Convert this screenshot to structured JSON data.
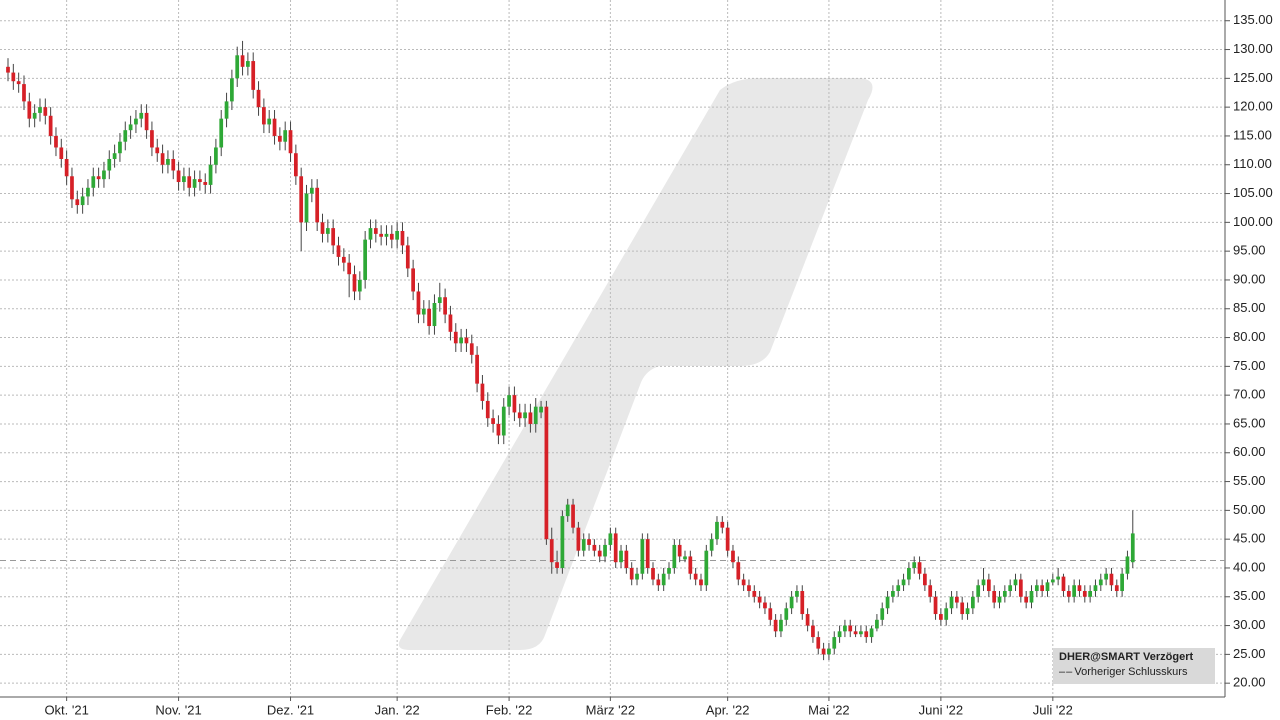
{
  "chart_data": {
    "type": "candlestick",
    "symbol": "DHER@SMART Verzögert",
    "legend_label": "Vorheriger Schlusskurs",
    "previous_close": 41.3,
    "up_color": "#2ea836",
    "down_color": "#d62027",
    "grid": true,
    "xlim": [
      -1.5,
      228.3
    ],
    "xticks": [
      {
        "value": 11,
        "label": "Okt. '21"
      },
      {
        "value": 32,
        "label": "Nov. '21"
      },
      {
        "value": 53,
        "label": "Dez. '21"
      },
      {
        "value": 73,
        "label": "Jan. '22"
      },
      {
        "value": 94,
        "label": "Feb. '22"
      },
      {
        "value": 113,
        "label": "März '22"
      },
      {
        "value": 135,
        "label": "Apr. '22"
      },
      {
        "value": 154,
        "label": "Mai '22"
      },
      {
        "value": 175,
        "label": "Juni '22"
      },
      {
        "value": 196,
        "label": "Juli '22"
      }
    ],
    "ylim": [
      17.6,
      138.6
    ],
    "yticks": [
      {
        "value": 20,
        "label": "20.00"
      },
      {
        "value": 25,
        "label": "25.00"
      },
      {
        "value": 30,
        "label": "30.00"
      },
      {
        "value": 35,
        "label": "35.00"
      },
      {
        "value": 40,
        "label": "40.00"
      },
      {
        "value": 45,
        "label": "45.00"
      },
      {
        "value": 50,
        "label": "50.00"
      },
      {
        "value": 55,
        "label": "55.00"
      },
      {
        "value": 60,
        "label": "60.00"
      },
      {
        "value": 65,
        "label": "65.00"
      },
      {
        "value": 70,
        "label": "70.00"
      },
      {
        "value": 75,
        "label": "75.00"
      },
      {
        "value": 80,
        "label": "80.00"
      },
      {
        "value": 85,
        "label": "85.00"
      },
      {
        "value": 90,
        "label": "90.00"
      },
      {
        "value": 95,
        "label": "95.00"
      },
      {
        "value": 100,
        "label": "100.00"
      },
      {
        "value": 105,
        "label": "105.00"
      },
      {
        "value": 110,
        "label": "110.00"
      },
      {
        "value": 115,
        "label": "115.00"
      },
      {
        "value": 120,
        "label": "120.00"
      },
      {
        "value": 125,
        "label": "125.00"
      },
      {
        "value": 130,
        "label": "130.00"
      },
      {
        "value": 135,
        "label": "135.00"
      }
    ],
    "ohlc": [
      [
        127,
        128.5,
        124.5,
        126
      ],
      [
        126,
        127.5,
        123,
        124.5
      ],
      [
        124.5,
        126,
        122.5,
        124
      ],
      [
        124,
        125.5,
        119.5,
        121
      ],
      [
        121,
        122.5,
        116.5,
        118
      ],
      [
        118,
        120.5,
        116.5,
        119
      ],
      [
        119,
        121.5,
        117.5,
        120
      ],
      [
        120,
        121.5,
        117,
        118.5
      ],
      [
        118.5,
        120,
        113.5,
        115
      ],
      [
        115,
        116.5,
        111.5,
        113
      ],
      [
        113,
        114.5,
        109.5,
        111
      ],
      [
        111,
        112.5,
        106.5,
        108
      ],
      [
        108,
        109.5,
        102.5,
        104
      ],
      [
        104,
        105.5,
        101.5,
        103
      ],
      [
        103,
        106,
        101.5,
        104.5
      ],
      [
        104.5,
        107.5,
        103,
        106
      ],
      [
        106,
        109.5,
        104.5,
        108
      ],
      [
        108,
        109.5,
        106,
        107.5
      ],
      [
        107.5,
        110.5,
        106,
        109
      ],
      [
        109,
        112.5,
        107.5,
        111
      ],
      [
        111,
        113.5,
        109.5,
        112
      ],
      [
        112,
        115.5,
        110.5,
        114
      ],
      [
        114,
        117.5,
        112.5,
        116
      ],
      [
        116,
        118.5,
        114.5,
        117
      ],
      [
        117,
        119.5,
        115.5,
        118
      ],
      [
        118,
        120.5,
        116.5,
        119
      ],
      [
        119,
        120.5,
        114.5,
        116
      ],
      [
        116,
        117.5,
        111.5,
        113
      ],
      [
        113,
        114.5,
        110.5,
        112
      ],
      [
        112,
        113.5,
        108.5,
        110
      ],
      [
        110,
        112.5,
        108.5,
        111
      ],
      [
        111,
        112.5,
        107.5,
        109
      ],
      [
        109,
        110.5,
        105.5,
        107
      ],
      [
        107,
        109.5,
        105.5,
        108
      ],
      [
        108,
        109.5,
        104.5,
        106
      ],
      [
        106,
        109,
        104.5,
        107.5
      ],
      [
        107.5,
        109,
        105.5,
        107
      ],
      [
        107,
        108.5,
        105,
        106.5
      ],
      [
        106.5,
        111.5,
        105,
        110
      ],
      [
        110,
        114.5,
        108.5,
        113
      ],
      [
        113,
        119.5,
        111.5,
        118
      ],
      [
        118,
        122.5,
        116.5,
        121
      ],
      [
        121,
        126.5,
        119.5,
        125
      ],
      [
        125,
        130.5,
        123.5,
        129
      ],
      [
        129,
        131.5,
        125.5,
        127
      ],
      [
        127,
        129.5,
        125.5,
        128
      ],
      [
        128,
        129.5,
        121.5,
        123
      ],
      [
        123,
        124.5,
        118.5,
        120
      ],
      [
        120,
        121.5,
        115.5,
        117
      ],
      [
        117,
        119.5,
        115.5,
        118
      ],
      [
        118,
        119.5,
        113.5,
        115
      ],
      [
        115,
        116.5,
        112.5,
        114
      ],
      [
        114,
        117.5,
        112.5,
        116
      ],
      [
        116,
        117.5,
        110.5,
        112
      ],
      [
        112,
        113.5,
        106.5,
        108
      ],
      [
        108,
        109.5,
        95,
        100
      ],
      [
        100,
        106.5,
        98.5,
        105
      ],
      [
        105,
        107.5,
        103.5,
        106
      ],
      [
        106,
        107.5,
        98.5,
        100
      ],
      [
        100,
        101.5,
        96.5,
        98
      ],
      [
        98,
        100.5,
        96.5,
        99
      ],
      [
        99,
        100.5,
        94.5,
        96
      ],
      [
        96,
        97.5,
        92.5,
        94
      ],
      [
        94,
        95.5,
        91.5,
        93
      ],
      [
        93,
        94.5,
        87,
        91
      ],
      [
        91,
        92.5,
        86.5,
        88
      ],
      [
        88,
        91.5,
        86.5,
        90
      ],
      [
        90,
        98.5,
        88.5,
        97
      ],
      [
        97,
        100.5,
        95.5,
        99
      ],
      [
        99,
        100.5,
        96.5,
        98
      ],
      [
        98,
        99.5,
        96,
        97.5
      ],
      [
        97.5,
        99.5,
        96,
        98
      ],
      [
        98,
        99.5,
        95.5,
        97
      ],
      [
        97,
        100,
        95.5,
        98.5
      ],
      [
        98.5,
        100,
        94.5,
        96
      ],
      [
        96,
        97.5,
        90.5,
        92
      ],
      [
        92,
        93.5,
        86.5,
        88
      ],
      [
        88,
        89.5,
        82.5,
        84
      ],
      [
        84,
        86.5,
        82.5,
        85
      ],
      [
        85,
        86.5,
        80.5,
        82
      ],
      [
        82,
        87.5,
        80.5,
        86
      ],
      [
        86,
        89.5,
        84.5,
        87
      ],
      [
        87,
        88.5,
        82.5,
        84
      ],
      [
        84,
        85.5,
        79.5,
        81
      ],
      [
        81,
        82.5,
        77.5,
        79
      ],
      [
        79,
        81.5,
        77.5,
        80
      ],
      [
        80,
        81.5,
        77.5,
        79
      ],
      [
        79,
        80.5,
        75.5,
        77
      ],
      [
        77,
        78.5,
        70.5,
        72
      ],
      [
        72,
        73.5,
        67.5,
        69
      ],
      [
        69,
        70.5,
        64.5,
        66
      ],
      [
        66,
        67.5,
        63.5,
        65
      ],
      [
        65,
        66.5,
        61.5,
        63
      ],
      [
        63,
        69.5,
        61.5,
        68
      ],
      [
        68,
        71.5,
        66.5,
        70
      ],
      [
        70,
        71.5,
        65.5,
        67
      ],
      [
        67,
        68.5,
        64.5,
        66
      ],
      [
        66,
        68.5,
        64.5,
        67
      ],
      [
        67,
        68.5,
        63.5,
        65
      ],
      [
        65,
        69.5,
        63.5,
        68
      ],
      [
        67,
        69,
        66,
        68
      ],
      [
        68,
        69,
        44,
        45
      ],
      [
        45,
        47,
        39,
        41
      ],
      [
        41,
        43,
        39,
        40
      ],
      [
        40,
        50,
        39,
        49
      ],
      [
        49,
        52,
        48,
        51
      ],
      [
        51,
        52,
        46,
        47
      ],
      [
        47,
        48,
        42,
        43
      ],
      [
        43,
        46,
        42,
        45
      ],
      [
        45,
        46,
        43,
        44
      ],
      [
        44,
        45,
        42,
        43
      ],
      [
        43,
        44,
        41,
        42
      ],
      [
        42,
        45,
        41,
        44
      ],
      [
        44,
        47,
        43,
        46
      ],
      [
        46,
        47,
        40,
        41
      ],
      [
        41,
        44,
        40,
        43
      ],
      [
        43,
        44,
        39,
        40
      ],
      [
        40,
        41,
        37,
        38
      ],
      [
        38,
        40,
        37,
        39
      ],
      [
        39,
        46,
        38,
        45
      ],
      [
        45,
        46,
        39,
        40
      ],
      [
        40,
        41,
        37,
        38
      ],
      [
        38,
        39,
        36,
        37
      ],
      [
        37,
        40,
        36,
        39
      ],
      [
        39,
        41,
        38,
        40
      ],
      [
        40,
        45,
        39,
        44
      ],
      [
        44,
        45,
        41,
        42
      ],
      [
        41.5,
        43,
        41,
        42
      ],
      [
        42,
        43,
        38,
        39
      ],
      [
        39,
        40,
        37,
        38
      ],
      [
        38,
        39,
        36,
        37
      ],
      [
        37,
        44,
        36,
        43
      ],
      [
        43,
        46,
        42,
        45
      ],
      [
        45,
        49,
        44,
        48
      ],
      [
        48,
        49,
        46,
        47
      ],
      [
        47,
        48,
        42,
        43
      ],
      [
        43,
        44,
        40,
        41
      ],
      [
        41,
        42,
        37,
        38
      ],
      [
        38,
        39,
        36,
        37
      ],
      [
        37,
        38,
        35,
        36
      ],
      [
        36,
        37,
        34,
        35
      ],
      [
        35,
        36,
        33,
        34
      ],
      [
        34,
        35,
        32,
        33
      ],
      [
        33,
        34,
        30,
        31
      ],
      [
        31,
        32,
        28,
        29
      ],
      [
        29,
        32,
        28,
        31
      ],
      [
        31,
        34,
        30,
        33
      ],
      [
        33,
        36,
        32,
        35
      ],
      [
        35,
        37,
        34,
        36
      ],
      [
        36,
        37,
        31,
        32
      ],
      [
        32,
        33,
        29,
        30
      ],
      [
        30,
        31,
        27,
        28
      ],
      [
        28,
        29,
        25,
        26
      ],
      [
        26,
        27,
        24,
        25
      ],
      [
        25,
        27,
        24,
        26
      ],
      [
        26,
        29,
        25,
        28
      ],
      [
        28,
        30,
        27,
        29
      ],
      [
        29,
        31,
        28,
        30
      ],
      [
        30,
        31,
        28,
        29
      ],
      [
        29,
        30,
        28,
        28.5
      ],
      [
        28.5,
        30,
        28,
        29
      ],
      [
        29,
        30,
        27,
        28
      ],
      [
        28,
        30,
        27,
        29.5
      ],
      [
        29.5,
        32,
        29,
        31
      ],
      [
        31,
        34,
        30,
        33
      ],
      [
        33,
        36,
        32,
        35
      ],
      [
        35,
        37,
        34,
        36
      ],
      [
        36,
        38,
        35,
        37
      ],
      [
        37,
        39,
        36,
        38
      ],
      [
        38,
        41,
        37,
        40
      ],
      [
        40,
        42,
        39,
        41
      ],
      [
        41,
        42,
        38,
        39
      ],
      [
        39,
        40,
        36,
        37
      ],
      [
        37,
        38,
        34,
        35
      ],
      [
        35,
        36,
        31,
        32
      ],
      [
        32,
        33,
        30,
        31
      ],
      [
        31,
        34,
        30,
        33
      ],
      [
        33,
        36,
        32,
        35
      ],
      [
        35,
        36,
        33,
        34
      ],
      [
        34,
        35,
        31,
        32
      ],
      [
        32,
        34,
        31,
        33
      ],
      [
        33,
        36,
        32,
        35
      ],
      [
        35,
        38,
        34,
        37
      ],
      [
        37,
        40,
        36,
        38
      ],
      [
        38,
        39,
        35,
        36
      ],
      [
        36,
        37,
        33,
        34
      ],
      [
        34,
        36,
        33,
        35
      ],
      [
        35,
        37,
        34,
        36
      ],
      [
        36,
        38,
        35,
        37
      ],
      [
        37,
        39,
        36,
        38
      ],
      [
        38,
        39,
        34,
        35
      ],
      [
        35,
        36,
        33,
        34
      ],
      [
        34,
        37,
        33,
        36
      ],
      [
        36,
        38,
        35,
        37
      ],
      [
        37,
        38,
        35,
        36
      ],
      [
        36,
        38,
        35,
        37.5
      ],
      [
        37.5,
        39,
        37,
        38
      ],
      [
        38,
        40,
        37,
        38.5
      ],
      [
        38.5,
        39,
        35,
        36
      ],
      [
        36,
        37,
        34,
        35
      ],
      [
        35,
        38,
        34,
        37
      ],
      [
        37,
        38,
        35,
        36
      ],
      [
        36,
        37,
        34,
        35
      ],
      [
        35,
        37,
        34,
        36
      ],
      [
        36,
        38,
        35,
        37
      ],
      [
        37,
        39,
        36,
        38
      ],
      [
        38,
        40,
        37,
        39
      ],
      [
        39,
        40,
        36,
        37
      ],
      [
        37,
        38,
        35,
        36
      ],
      [
        36,
        40,
        35,
        39
      ],
      [
        39,
        43,
        38,
        42
      ],
      [
        41,
        50,
        40,
        46
      ]
    ]
  }
}
